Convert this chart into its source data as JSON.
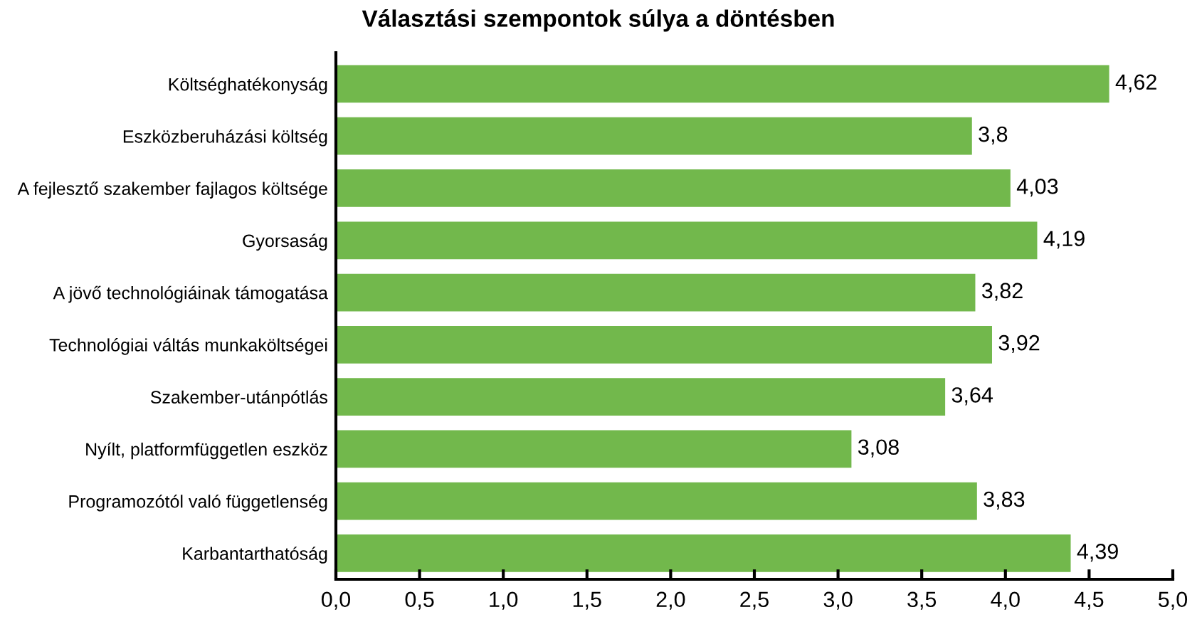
{
  "chart_data": {
    "type": "bar",
    "orientation": "horizontal",
    "title": "Választási szempontok súlya a döntésben",
    "categories": [
      "Költséghatékonyság",
      "Eszközberuházási költség",
      "A fejlesztő szakember fajlagos költsége",
      "Gyorsaság",
      "A jövő technológiáinak támogatása",
      "Technológiai váltás munkaköltségei",
      "Szakember-utánpótlás",
      "Nyílt, platformfüggetlen eszköz",
      "Programozótól való függetlenség",
      "Karbantarthatóság"
    ],
    "values": [
      4.62,
      3.8,
      4.03,
      4.19,
      3.82,
      3.92,
      3.64,
      3.08,
      3.83,
      4.39
    ],
    "value_labels": [
      "4,62",
      "3,8",
      "4,03",
      "4,19",
      "3,82",
      "3,92",
      "3,64",
      "3,08",
      "3,83",
      "4,39"
    ],
    "color": "#72b84c",
    "xlim": [
      0,
      5
    ],
    "xticks": [
      {
        "value": 0,
        "label": "0,0"
      },
      {
        "value": 0.5,
        "label": "0,5"
      },
      {
        "value": 1,
        "label": "1,0"
      },
      {
        "value": 1.5,
        "label": "1,5"
      },
      {
        "value": 2,
        "label": "2,0"
      },
      {
        "value": 2.5,
        "label": "2,5"
      },
      {
        "value": 3,
        "label": "3,0"
      },
      {
        "value": 3.5,
        "label": "3,5"
      },
      {
        "value": 4,
        "label": "4,0"
      },
      {
        "value": 4.5,
        "label": "4,5"
      },
      {
        "value": 5,
        "label": "5,0"
      }
    ],
    "grid": false,
    "legend": false
  }
}
